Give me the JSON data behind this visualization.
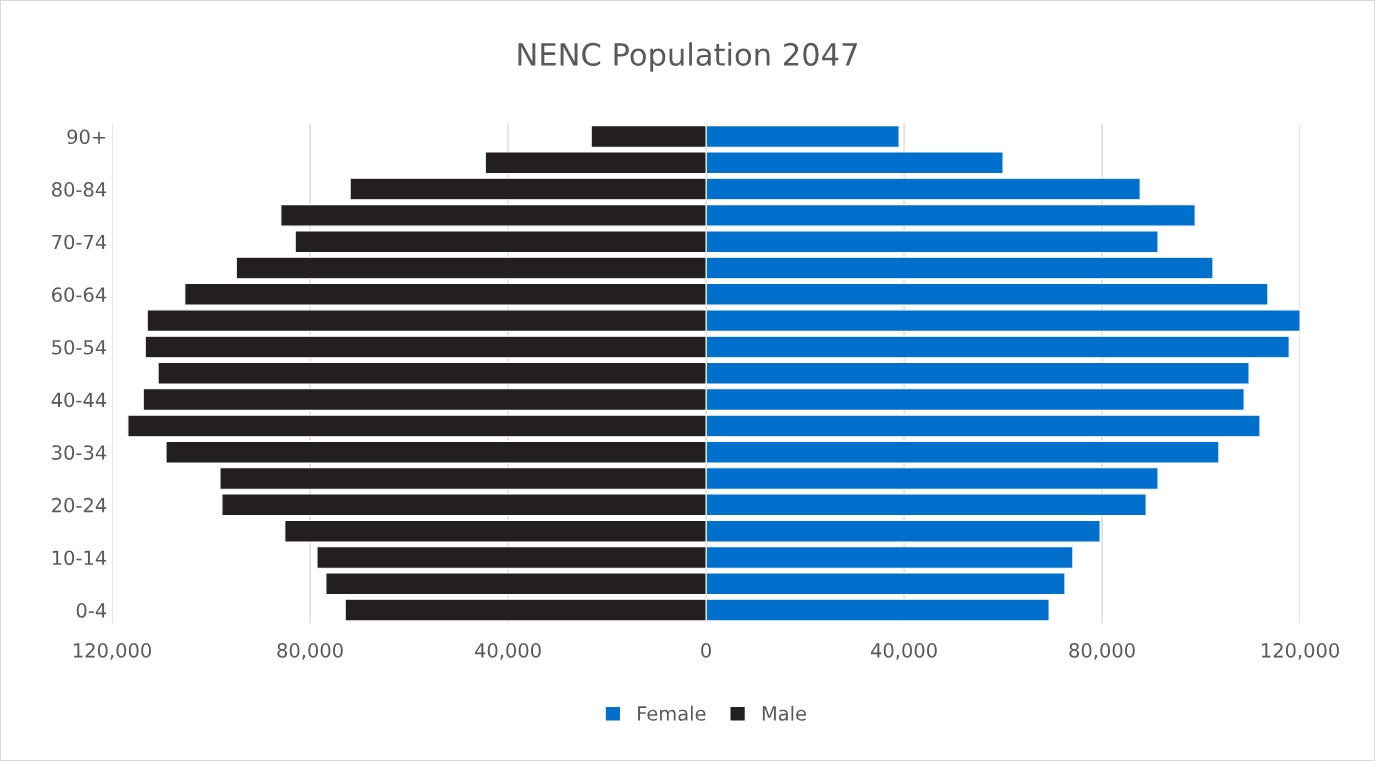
{
  "chart_data": {
    "type": "bar",
    "orientation": "horizontal",
    "title": "NENC Population 2047",
    "categories": [
      "90+",
      null,
      "80-84",
      null,
      "70-74",
      null,
      "60-64",
      null,
      "50-54",
      null,
      "40-44",
      null,
      "30-34",
      null,
      "20-24",
      null,
      "10-14",
      null,
      "0-4"
    ],
    "series": [
      {
        "name": "Female",
        "color": "#0070cc",
        "values": [
          39000,
          60000,
          87700,
          98800,
          91300,
          102400,
          113500,
          120000,
          117800,
          109700,
          108700,
          111900,
          103600,
          91300,
          88900,
          79600,
          74100,
          72500,
          69300
        ]
      },
      {
        "name": "Male",
        "color": "#231f20",
        "values": [
          -23200,
          -44600,
          -71900,
          -85900,
          -83000,
          -94900,
          -105300,
          -112900,
          -113300,
          -110700,
          -113700,
          -116800,
          -109100,
          -98200,
          -97800,
          -85100,
          -78600,
          -76800,
          -72900
        ]
      }
    ],
    "xlim": [
      -120000,
      120000
    ],
    "stacked": true,
    "xticks": [
      {
        "value": -120000,
        "label": "120,000"
      },
      {
        "value": -80000,
        "label": "80,000"
      },
      {
        "value": -40000,
        "label": "40,000"
      },
      0,
      {
        "value": 40000,
        "label": "40,000"
      },
      {
        "value": 80000,
        "label": "80,000"
      },
      {
        "value": 120000,
        "label": "120,000"
      }
    ],
    "grid": "x",
    "legend": "bottom"
  }
}
